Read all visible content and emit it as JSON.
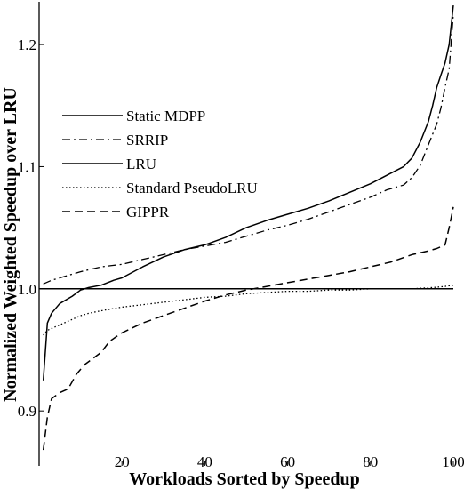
{
  "chart_data": {
    "type": "line",
    "title": "",
    "xlabel": "Workloads Sorted by Speedup",
    "ylabel": "Normalized Weighted Speedup over LRU",
    "xlim": [
      0,
      100
    ],
    "ylim": [
      0.855,
      1.235
    ],
    "x_ticks": [
      20,
      40,
      60,
      80,
      100
    ],
    "y_ticks": [
      0.9,
      1.0,
      1.1,
      1.2
    ],
    "x_tick_labels": [
      "20",
      "40",
      "60",
      "80",
      "100"
    ],
    "y_tick_labels": [
      "0.9",
      "1.0",
      "1.1",
      "1.2"
    ],
    "grid": false,
    "legend_position": "middle-left",
    "series": [
      {
        "name": "Static MDPP",
        "dash": "solid",
        "x": [
          1,
          2,
          3,
          5,
          8,
          10,
          12,
          15,
          18,
          20,
          25,
          30,
          35,
          40,
          45,
          50,
          55,
          60,
          65,
          70,
          75,
          80,
          84,
          88,
          90,
          92,
          94,
          95,
          96,
          97,
          98,
          99,
          100
        ],
        "y": [
          0.925,
          0.972,
          0.98,
          0.988,
          0.994,
          0.999,
          1.001,
          1.003,
          1.007,
          1.009,
          1.018,
          1.026,
          1.032,
          1.036,
          1.042,
          1.05,
          1.056,
          1.061,
          1.066,
          1.072,
          1.079,
          1.086,
          1.093,
          1.1,
          1.107,
          1.12,
          1.137,
          1.15,
          1.165,
          1.175,
          1.185,
          1.2,
          1.232
        ]
      },
      {
        "name": "SRRIP",
        "dash": "dashdot",
        "x": [
          1,
          3,
          5,
          10,
          15,
          20,
          25,
          30,
          35,
          40,
          45,
          50,
          55,
          60,
          65,
          70,
          75,
          80,
          84,
          88,
          90,
          92,
          94,
          96,
          97,
          98,
          99,
          100
        ],
        "y": [
          1.004,
          1.007,
          1.009,
          1.014,
          1.018,
          1.02,
          1.024,
          1.028,
          1.032,
          1.035,
          1.038,
          1.043,
          1.048,
          1.052,
          1.057,
          1.063,
          1.069,
          1.075,
          1.081,
          1.085,
          1.091,
          1.101,
          1.118,
          1.135,
          1.148,
          1.165,
          1.18,
          1.225
        ]
      },
      {
        "name": "LRU",
        "dash": "solid",
        "x": [
          0,
          100
        ],
        "y": [
          1.0,
          1.0
        ]
      },
      {
        "name": "Standard PseudoLRU",
        "dash": "dotted",
        "x": [
          1,
          2,
          4,
          6,
          8,
          10,
          12,
          15,
          20,
          25,
          30,
          35,
          40,
          45,
          50,
          55,
          60,
          65,
          70,
          75,
          80,
          85,
          90,
          95,
          98,
          100
        ],
        "y": [
          0.962,
          0.966,
          0.969,
          0.972,
          0.975,
          0.978,
          0.98,
          0.982,
          0.985,
          0.987,
          0.989,
          0.991,
          0.993,
          0.994,
          0.996,
          0.997,
          0.998,
          0.998,
          0.999,
          0.999,
          1.0,
          1.0,
          1.0,
          1.001,
          1.002,
          1.003
        ]
      },
      {
        "name": "GIPPR",
        "dash": "dashed",
        "x": [
          1,
          2,
          3,
          5,
          7,
          9,
          11,
          13,
          15,
          17,
          20,
          25,
          30,
          35,
          40,
          45,
          50,
          55,
          60,
          65,
          70,
          75,
          80,
          85,
          90,
          94,
          96,
          98,
          99,
          100
        ],
        "y": [
          0.868,
          0.895,
          0.91,
          0.915,
          0.918,
          0.93,
          0.938,
          0.943,
          0.948,
          0.957,
          0.964,
          0.972,
          0.978,
          0.984,
          0.99,
          0.995,
          0.999,
          1.002,
          1.005,
          1.008,
          1.011,
          1.014,
          1.018,
          1.022,
          1.028,
          1.031,
          1.033,
          1.036,
          1.05,
          1.067
        ]
      }
    ]
  }
}
